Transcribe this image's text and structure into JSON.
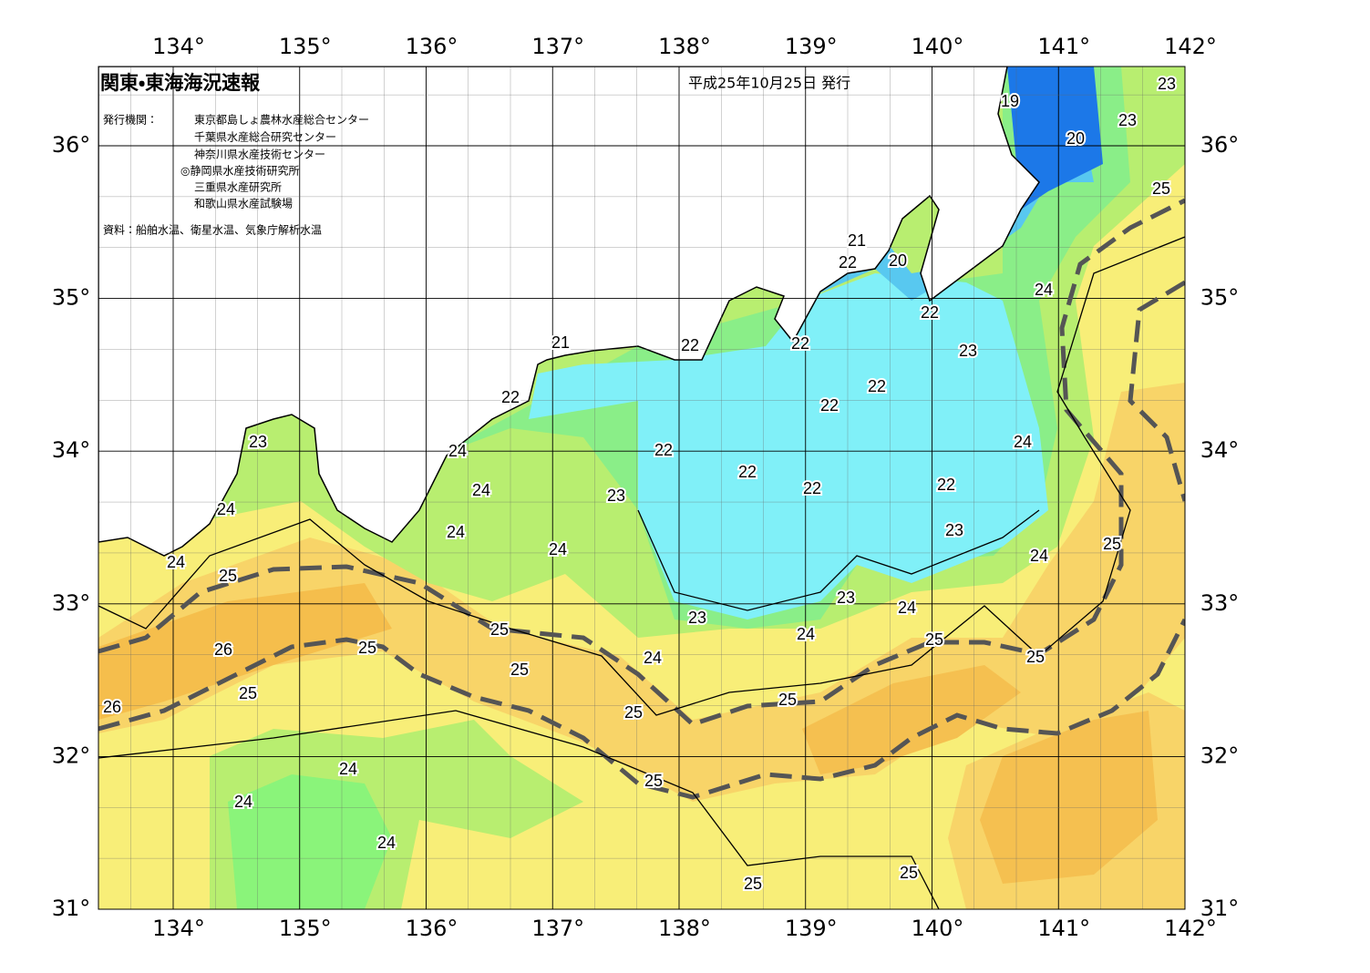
{
  "header": {
    "title": "関東・東海海況速報",
    "date": "平成25年10月25日 発行",
    "issuer_label": "発行機関：",
    "issuers": [
      "東京都島しょ農林水産総合センター",
      "千葉県水産総合研究センター",
      "神奈川県水産技術センター",
      "◎静岡県水産技術研究所",
      "三重県水産研究所",
      "和歌山県水産試験場"
    ],
    "source": "資料：船舶水温、衛星水温、気象庁解析水温"
  },
  "longitude_labels": [
    "134°",
    "135°",
    "136°",
    "137°",
    "138°",
    "139°",
    "140°",
    "141°",
    "142°"
  ],
  "latitude_labels": [
    "36°",
    "35°",
    "34°",
    "33°",
    "32°",
    "31°"
  ],
  "contour_labels": [
    19,
    23,
    23,
    20,
    25,
    21,
    22,
    20,
    24,
    22,
    21,
    22,
    22,
    23,
    22,
    22,
    22,
    23,
    24,
    22,
    24,
    22,
    22,
    22,
    24,
    23,
    24,
    24,
    23,
    24,
    24,
    25,
    24,
    25,
    23,
    24,
    25,
    23,
    24,
    25,
    26,
    25,
    24,
    25,
    25,
    25,
    26,
    25,
    25,
    24,
    25,
    24,
    24,
    25,
    25
  ]
}
